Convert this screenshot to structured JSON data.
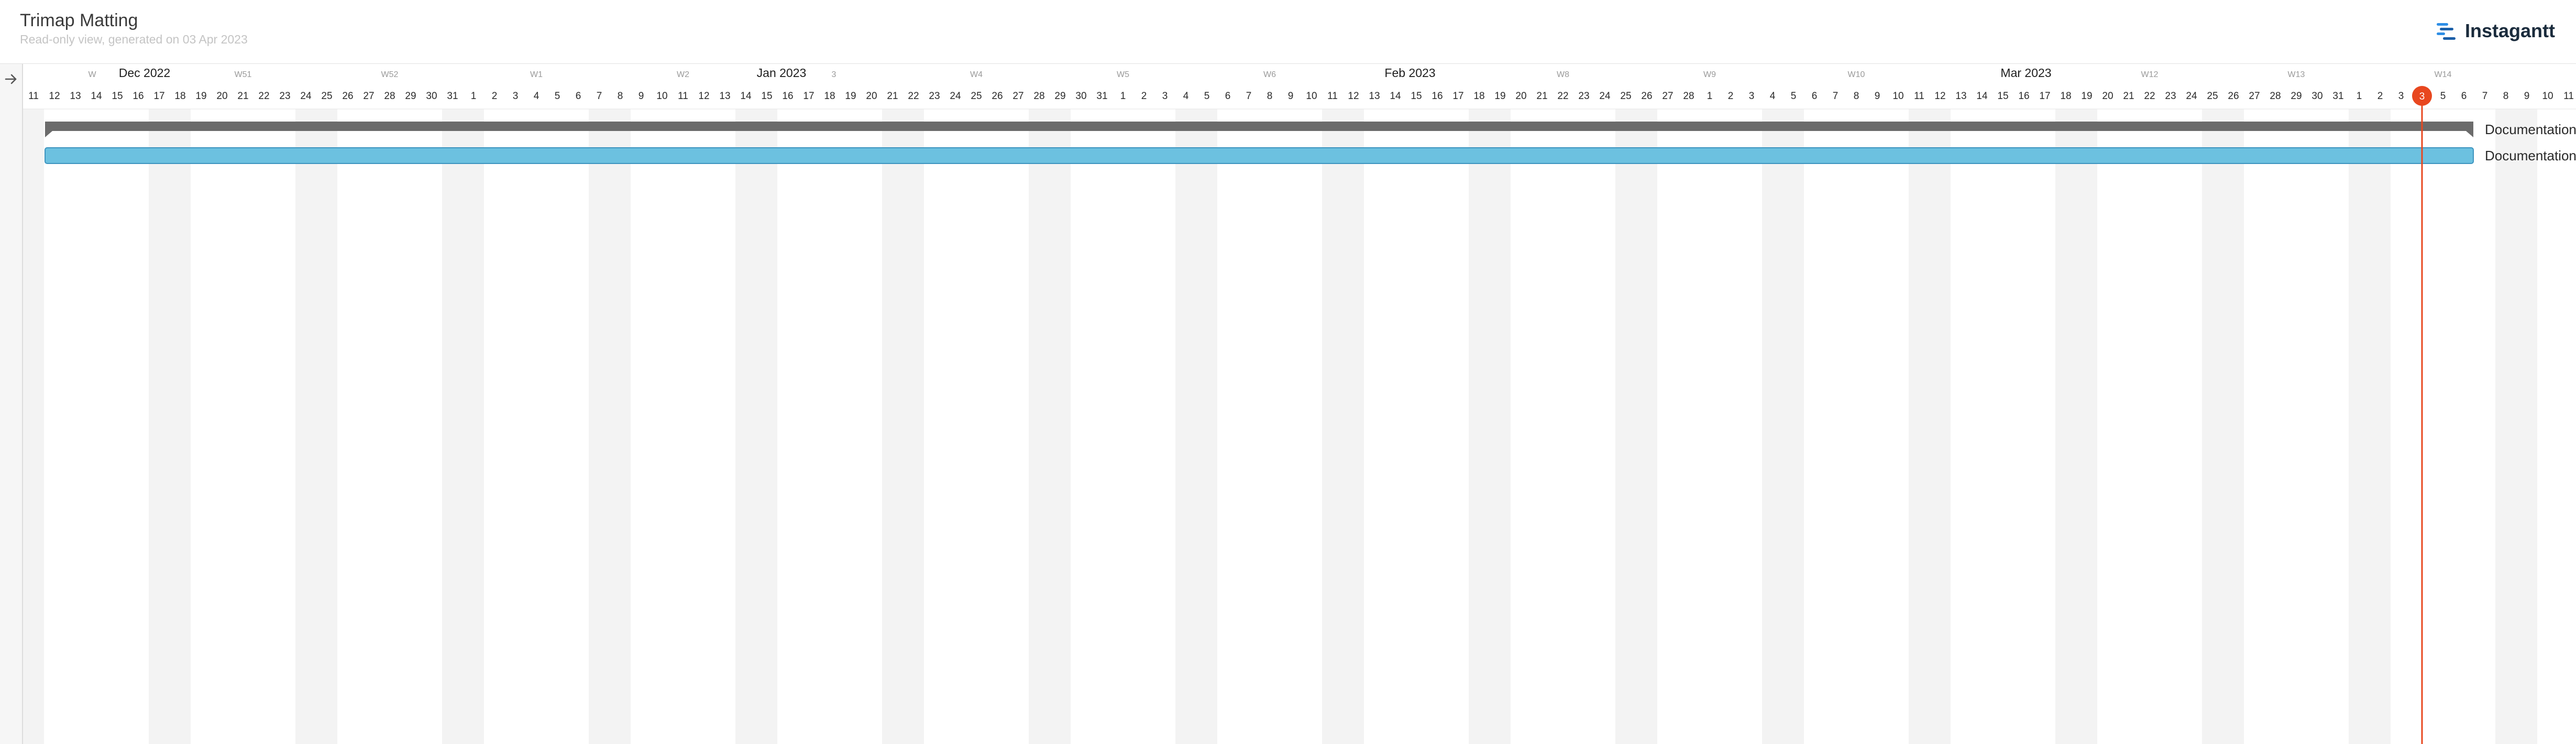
{
  "header": {
    "title": "Trimap Matting",
    "subtitle": "Read-only view, generated on 03 Apr 2023",
    "brand_name": "Instagantt",
    "brand_logo_icon": "instagantt-logo-icon",
    "accent_color": "#2e8ee6"
  },
  "toolbar": {
    "expand_icon": "arrow-right-icon"
  },
  "timeline": {
    "month_labels": [
      "Dec 2022",
      "Jan 2023",
      "Feb 2023",
      "Mar 2023"
    ],
    "week_labels": [
      "W",
      "W51",
      "W52",
      "W1",
      "W2",
      "3",
      "W4",
      "W5",
      "W6",
      "W8",
      "W9",
      "W10",
      "W12",
      "W13",
      "W14"
    ],
    "day_labels": [
      "11",
      "12",
      "13",
      "14",
      "15",
      "16",
      "17",
      "18",
      "19",
      "20",
      "21",
      "22",
      "23",
      "24",
      "25",
      "26",
      "27",
      "28",
      "29",
      "30",
      "31",
      "1",
      "2",
      "3",
      "4",
      "5",
      "6",
      "7",
      "8",
      "9",
      "10",
      "11",
      "12",
      "13",
      "14",
      "15",
      "16",
      "17",
      "18",
      "19",
      "20",
      "21",
      "22",
      "23",
      "24",
      "25",
      "26",
      "27",
      "28",
      "29",
      "30",
      "31",
      "1",
      "2",
      "3",
      "4",
      "5",
      "6",
      "7",
      "8",
      "9",
      "10",
      "11",
      "12",
      "13",
      "14",
      "15",
      "16",
      "17",
      "18",
      "19",
      "20",
      "21",
      "22",
      "23",
      "24",
      "25",
      "26",
      "27",
      "28",
      "1",
      "2",
      "3",
      "4",
      "5",
      "6",
      "7",
      "8",
      "9",
      "10",
      "11",
      "12",
      "13",
      "14",
      "15",
      "16",
      "17",
      "18",
      "19",
      "20",
      "21",
      "22",
      "23",
      "24",
      "25",
      "26",
      "27",
      "28",
      "29",
      "30",
      "31",
      "1",
      "2",
      "3",
      "4",
      "5",
      "6",
      "7",
      "8",
      "9",
      "10",
      "11"
    ],
    "today_marker": "3",
    "today_color": "#e8471f",
    "weekend_color": "#f3f3f3"
  },
  "tasks": [
    {
      "label": "Documentation:",
      "kind": "group",
      "start_day_index": 1,
      "end_day_index": 116,
      "color": "#6b6b6b"
    },
    {
      "label": "Documentation",
      "kind": "task",
      "start_day_index": 1,
      "end_day_index": 116,
      "color": "#6cc1e0",
      "border_color": "#3d94bf"
    }
  ]
}
